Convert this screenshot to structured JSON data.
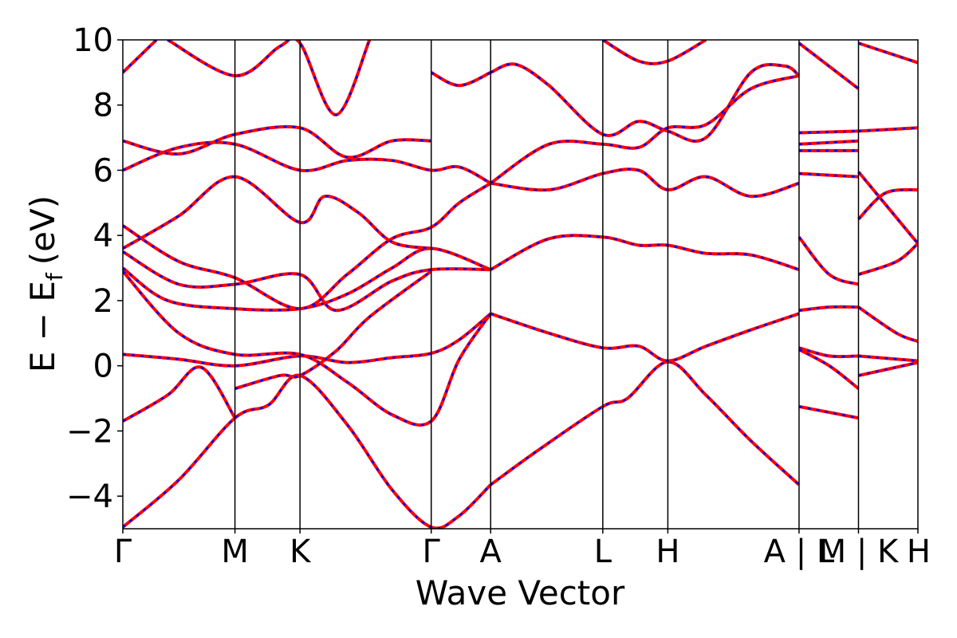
{
  "chart_data": {
    "type": "line",
    "xlabel": "Wave Vector",
    "ylabel": "E − E",
    "ylabel_subscript": "f",
    "ylabel_unit": "(eV)",
    "ylim": [
      -5,
      10
    ],
    "yticks": [
      -4,
      -2,
      0,
      2,
      4,
      6,
      8,
      10
    ],
    "ytick_labels": [
      "−4",
      "−2",
      "0",
      "2",
      "4",
      "6",
      "8",
      "10"
    ],
    "kpoint_ticks": [
      {
        "label": "Γ",
        "k": 0.0
      },
      {
        "label": "M",
        "k": 0.5
      },
      {
        "label": "K",
        "k": 0.79
      },
      {
        "label": "Γ",
        "k": 1.375
      },
      {
        "label": "A",
        "k": 1.64
      },
      {
        "label": "L",
        "k": 2.14
      },
      {
        "label": "H",
        "k": 2.43
      },
      {
        "label": "A | L",
        "k": 3.015
      },
      {
        "label": "M | K",
        "k": 3.28
      },
      {
        "label": "H",
        "k": 3.545
      }
    ],
    "xlim": [
      0.0,
      3.545
    ],
    "grid": false,
    "colors": {
      "solid": "#ff0000",
      "dashed": "#0000ff",
      "frame": "#000000"
    },
    "series": [
      {
        "style": "solid",
        "segments": [
          [
            [
              0.0,
              -4.95
            ],
            [
              0.25,
              -3.5
            ],
            [
              0.5,
              -1.6
            ],
            [
              0.65,
              -1.2
            ],
            [
              0.79,
              -0.3
            ],
            [
              1.0,
              -1.8
            ],
            [
              1.2,
              -3.8
            ],
            [
              1.375,
              -4.95
            ],
            [
              1.5,
              -4.6
            ],
            [
              1.64,
              -3.65
            ]
          ],
          [
            [
              1.64,
              -3.65
            ],
            [
              1.85,
              -2.6
            ],
            [
              2.14,
              -1.25
            ],
            [
              2.25,
              -1.0
            ],
            [
              2.43,
              0.12
            ],
            [
              2.6,
              -0.9
            ],
            [
              2.8,
              -2.3
            ],
            [
              3.015,
              -3.65
            ]
          ],
          [
            [
              0.0,
              -1.7
            ],
            [
              0.2,
              -0.9
            ],
            [
              0.35,
              -0.05
            ],
            [
              0.5,
              -1.6
            ]
          ],
          [
            [
              0.0,
              0.35
            ],
            [
              0.25,
              0.2
            ],
            [
              0.5,
              0.0
            ],
            [
              0.79,
              0.3
            ],
            [
              1.0,
              0.1
            ],
            [
              1.2,
              0.25
            ],
            [
              1.375,
              0.38
            ],
            [
              1.5,
              0.8
            ],
            [
              1.64,
              1.6
            ]
          ],
          [
            [
              1.64,
              1.6
            ],
            [
              1.9,
              1.0
            ],
            [
              2.14,
              0.55
            ],
            [
              2.3,
              0.6
            ],
            [
              2.43,
              0.15
            ],
            [
              2.6,
              0.6
            ],
            [
              2.8,
              1.1
            ],
            [
              3.015,
              1.6
            ]
          ],
          [
            [
              0.0,
              2.9
            ],
            [
              0.25,
              1.0
            ],
            [
              0.5,
              0.35
            ],
            [
              0.79,
              0.35
            ],
            [
              1.0,
              -0.5
            ],
            [
              1.2,
              -1.5
            ],
            [
              1.375,
              -1.7
            ],
            [
              1.5,
              0.2
            ],
            [
              1.64,
              1.6
            ]
          ],
          [
            [
              0.5,
              -0.7
            ],
            [
              0.7,
              -0.3
            ],
            [
              0.79,
              -0.3
            ],
            [
              0.95,
              0.45
            ],
            [
              1.1,
              1.5
            ],
            [
              1.375,
              2.9
            ]
          ],
          [
            [
              0.0,
              3.0
            ],
            [
              0.2,
              2.0
            ],
            [
              0.5,
              1.75
            ],
            [
              0.79,
              1.75
            ],
            [
              1.0,
              2.2
            ],
            [
              1.2,
              3.0
            ],
            [
              1.375,
              3.6
            ],
            [
              1.64,
              2.95
            ]
          ],
          [
            [
              0.0,
              3.5
            ],
            [
              0.25,
              2.5
            ],
            [
              0.5,
              2.5
            ],
            [
              0.79,
              2.8
            ],
            [
              0.95,
              1.7
            ],
            [
              1.2,
              2.6
            ],
            [
              1.375,
              2.95
            ],
            [
              1.64,
              2.95
            ]
          ],
          [
            [
              0.0,
              4.3
            ],
            [
              0.25,
              3.2
            ],
            [
              0.5,
              2.7
            ],
            [
              0.79,
              1.75
            ],
            [
              1.0,
              2.8
            ],
            [
              1.2,
              3.9
            ],
            [
              1.375,
              4.25
            ],
            [
              1.5,
              5.0
            ],
            [
              1.64,
              5.6
            ]
          ],
          [
            [
              1.64,
              2.95
            ],
            [
              1.9,
              3.9
            ],
            [
              2.14,
              3.95
            ],
            [
              2.3,
              3.7
            ],
            [
              2.43,
              3.7
            ],
            [
              2.6,
              3.45
            ],
            [
              2.8,
              3.4
            ],
            [
              3.015,
              2.95
            ]
          ],
          [
            [
              1.64,
              5.6
            ],
            [
              1.9,
              5.4
            ],
            [
              2.14,
              5.9
            ],
            [
              2.3,
              6.0
            ],
            [
              2.43,
              5.4
            ],
            [
              2.6,
              5.8
            ],
            [
              2.8,
              5.2
            ],
            [
              3.015,
              5.6
            ]
          ],
          [
            [
              0.0,
              6.0
            ],
            [
              0.25,
              6.7
            ],
            [
              0.5,
              6.8
            ],
            [
              0.79,
              6.0
            ],
            [
              1.0,
              6.3
            ],
            [
              1.2,
              6.3
            ],
            [
              1.375,
              6.0
            ],
            [
              1.5,
              6.1
            ],
            [
              1.64,
              5.6
            ]
          ],
          [
            [
              0.0,
              6.9
            ],
            [
              0.25,
              6.5
            ],
            [
              0.5,
              7.1
            ],
            [
              0.79,
              7.3
            ],
            [
              1.0,
              6.4
            ],
            [
              1.2,
              6.9
            ],
            [
              1.375,
              6.9
            ]
          ],
          [
            [
              0.0,
              3.6
            ],
            [
              0.25,
              4.6
            ],
            [
              0.5,
              5.8
            ],
            [
              0.79,
              4.4
            ],
            [
              0.9,
              5.2
            ],
            [
              1.05,
              4.7
            ],
            [
              1.2,
              3.8
            ],
            [
              1.375,
              3.6
            ]
          ],
          [
            [
              1.64,
              9.0
            ],
            [
              1.75,
              9.25
            ],
            [
              1.9,
              8.6
            ],
            [
              2.14,
              7.1
            ],
            [
              2.3,
              7.5
            ],
            [
              2.43,
              7.2
            ],
            [
              2.6,
              7.0
            ],
            [
              2.8,
              9.0
            ],
            [
              2.95,
              9.2
            ],
            [
              3.015,
              8.9
            ]
          ],
          [
            [
              1.64,
              5.6
            ],
            [
              1.9,
              6.8
            ],
            [
              2.14,
              6.8
            ],
            [
              2.3,
              6.7
            ],
            [
              2.43,
              7.3
            ],
            [
              2.6,
              7.4
            ],
            [
              2.8,
              8.5
            ],
            [
              3.015,
              8.9
            ]
          ],
          [
            [
              0.0,
              9.0
            ],
            [
              0.15,
              10.0
            ]
          ],
          [
            [
              0.2,
              10.0
            ],
            [
              0.5,
              8.9
            ],
            [
              0.7,
              9.8
            ],
            [
              0.79,
              9.9
            ],
            [
              0.95,
              7.7
            ],
            [
              1.1,
              10.0
            ]
          ],
          [
            [
              1.375,
              9.0
            ],
            [
              1.5,
              8.6
            ],
            [
              1.64,
              9.0
            ]
          ],
          [
            [
              2.14,
              10.0
            ],
            [
              2.3,
              9.35
            ],
            [
              2.43,
              9.35
            ],
            [
              2.6,
              10.0
            ]
          ],
          [
            [
              3.015,
              9.9
            ],
            [
              3.28,
              8.5
            ]
          ],
          [
            [
              3.015,
              7.15
            ],
            [
              3.28,
              7.2
            ]
          ],
          [
            [
              3.015,
              6.8
            ],
            [
              3.28,
              6.9
            ]
          ],
          [
            [
              3.015,
              6.6
            ],
            [
              3.28,
              6.6
            ]
          ],
          [
            [
              3.015,
              5.9
            ],
            [
              3.28,
              5.8
            ]
          ],
          [
            [
              3.015,
              3.95
            ],
            [
              3.15,
              2.8
            ],
            [
              3.28,
              2.5
            ]
          ],
          [
            [
              3.015,
              1.7
            ],
            [
              3.15,
              1.8
            ],
            [
              3.28,
              1.8
            ]
          ],
          [
            [
              3.015,
              0.55
            ],
            [
              3.15,
              0.3
            ],
            [
              3.28,
              0.3
            ]
          ],
          [
            [
              3.015,
              0.5
            ],
            [
              3.15,
              0.0
            ],
            [
              3.28,
              -0.7
            ]
          ],
          [
            [
              3.015,
              -1.25
            ],
            [
              3.28,
              -1.6
            ]
          ],
          [
            [
              3.28,
              9.9
            ],
            [
              3.545,
              9.3
            ]
          ],
          [
            [
              3.28,
              7.2
            ],
            [
              3.545,
              7.3
            ]
          ],
          [
            [
              3.28,
              5.95
            ],
            [
              3.545,
              3.75
            ]
          ],
          [
            [
              3.28,
              4.5
            ],
            [
              3.4,
              5.3
            ],
            [
              3.545,
              5.4
            ]
          ],
          [
            [
              3.28,
              2.8
            ],
            [
              3.45,
              3.2
            ],
            [
              3.545,
              3.75
            ]
          ],
          [
            [
              3.28,
              1.8
            ],
            [
              3.45,
              1.0
            ],
            [
              3.545,
              0.75
            ]
          ],
          [
            [
              3.28,
              0.3
            ],
            [
              3.545,
              0.15
            ]
          ],
          [
            [
              3.28,
              -0.3
            ],
            [
              3.545,
              0.1
            ]
          ]
        ]
      }
    ]
  }
}
